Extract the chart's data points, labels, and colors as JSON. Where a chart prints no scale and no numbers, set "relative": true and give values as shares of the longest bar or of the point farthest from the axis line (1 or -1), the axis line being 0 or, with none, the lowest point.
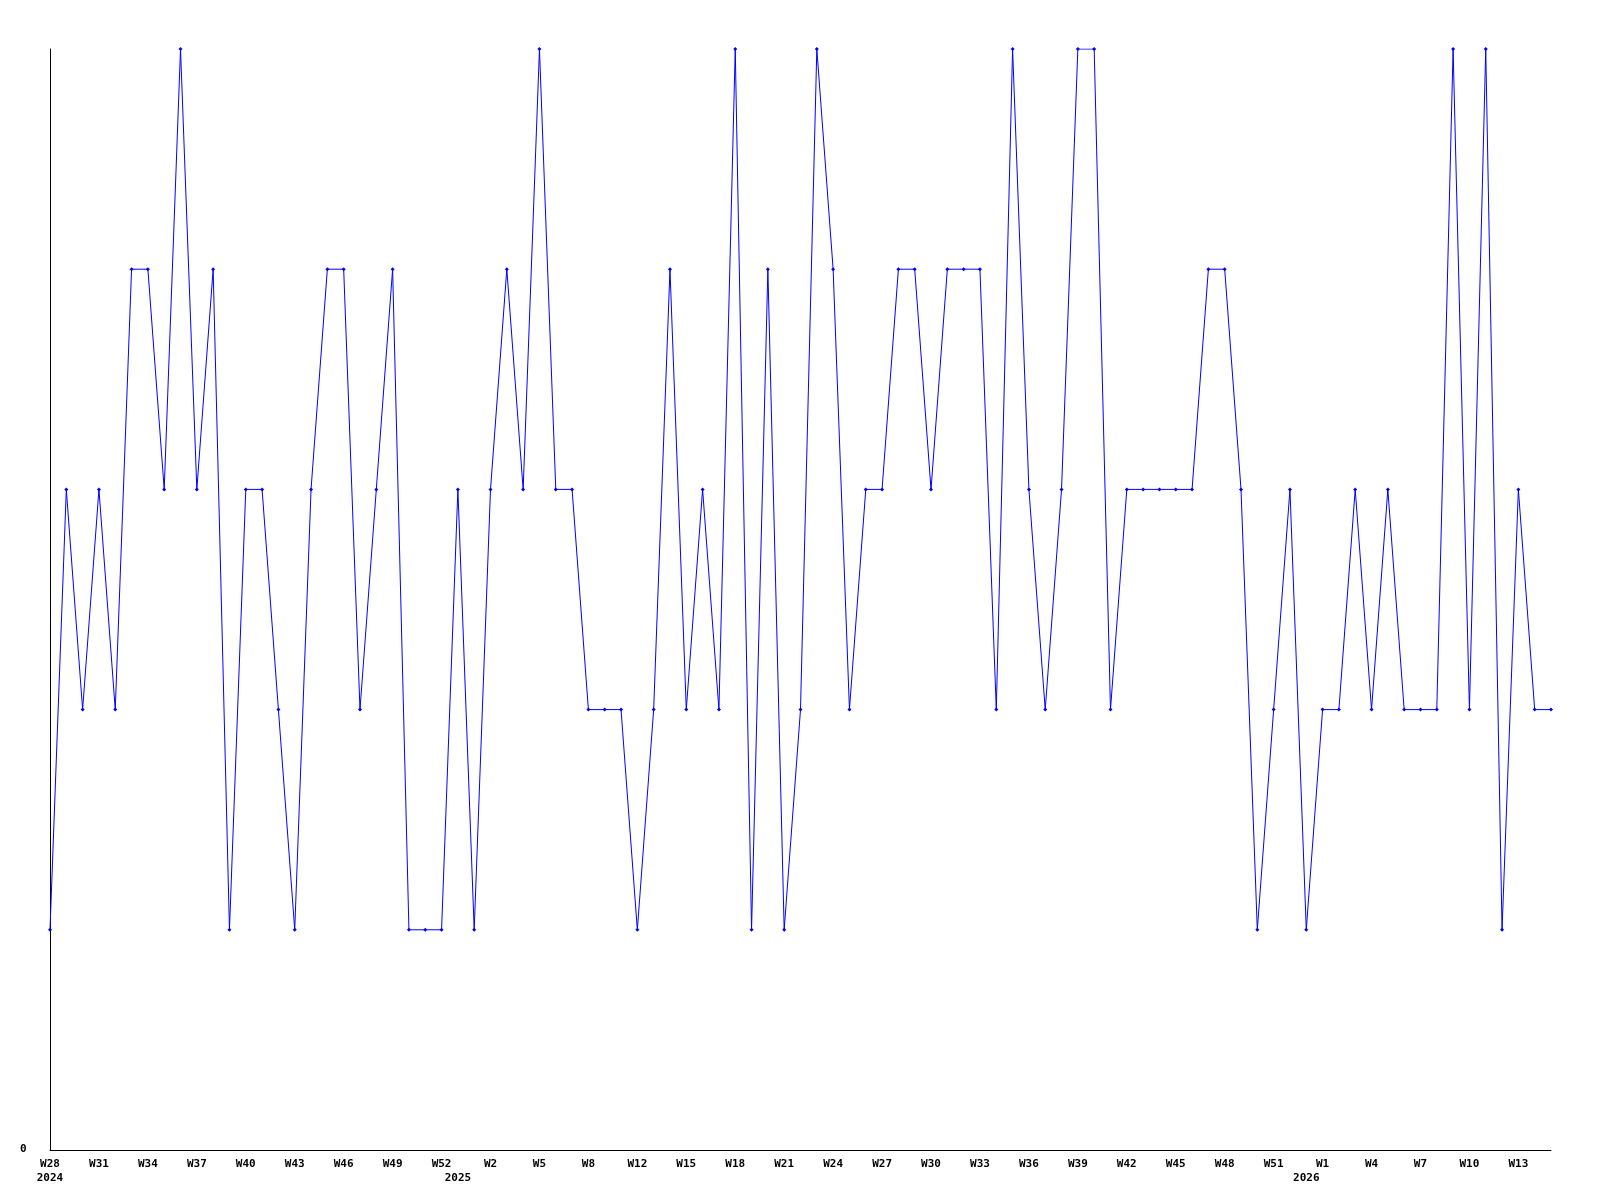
{
  "chart_data": {
    "type": "line",
    "relative": true,
    "annotations": [
      "0"
    ],
    "categories": [
      "W28\n2024",
      null,
      null,
      "W31",
      null,
      null,
      "W34",
      null,
      null,
      "W37",
      null,
      null,
      "W40",
      null,
      null,
      "W43",
      null,
      null,
      "W46",
      null,
      null,
      "W49",
      null,
      null,
      "W52",
      "\n2025",
      null,
      "W2",
      null,
      null,
      "W5",
      null,
      null,
      "W8",
      null,
      null,
      "W12",
      null,
      null,
      "W15",
      null,
      null,
      "W18",
      null,
      null,
      "W21",
      null,
      null,
      "W24",
      null,
      null,
      "W27",
      null,
      null,
      "W30",
      null,
      null,
      "W33",
      null,
      null,
      "W36",
      null,
      null,
      "W39",
      null,
      null,
      "W42",
      null,
      null,
      "W45",
      null,
      null,
      "W48",
      null,
      null,
      "W51",
      null,
      "\n2026",
      "W1",
      null,
      null,
      "W4",
      null,
      null,
      "W7",
      null,
      null,
      "W10",
      null,
      null,
      "W13",
      null,
      null
    ],
    "series": [
      {
        "color": "#0000ff",
        "values": [
          0.2,
          0.6,
          0.4,
          0.6,
          0.4,
          0.8,
          0.8,
          0.6,
          1,
          0.6,
          0.8,
          0.2,
          0.6,
          0.6,
          0.4,
          0.2,
          0.6,
          0.8,
          0.8,
          0.4,
          0.6,
          0.8,
          0.2,
          0.2,
          0.2,
          0.6,
          0.2,
          0.6,
          0.8,
          0.6,
          1,
          0.6,
          0.6,
          0.4,
          0.4,
          0.4,
          0.2,
          0.4,
          0.8,
          0.4,
          0.6,
          0.4,
          1,
          0.2,
          0.8,
          0.2,
          0.4,
          1,
          0.8,
          0.4,
          0.6,
          0.6,
          0.8,
          0.8,
          0.6,
          0.8,
          0.8,
          0.8,
          0.4,
          1,
          0.6,
          0.4,
          0.6,
          1,
          1,
          0.4,
          0.6,
          0.6,
          0.6,
          0.6,
          0.6,
          0.8,
          0.8,
          0.6,
          0.2,
          0.4,
          0.6,
          0.2,
          0.4,
          0.4,
          0.6,
          0.4,
          0.6,
          0.4,
          0.4,
          0.4,
          1,
          0.4,
          1,
          0.2,
          0.6,
          0.4,
          0.4
        ]
      }
    ],
    "marker": "diamond",
    "line_style": "solid"
  }
}
